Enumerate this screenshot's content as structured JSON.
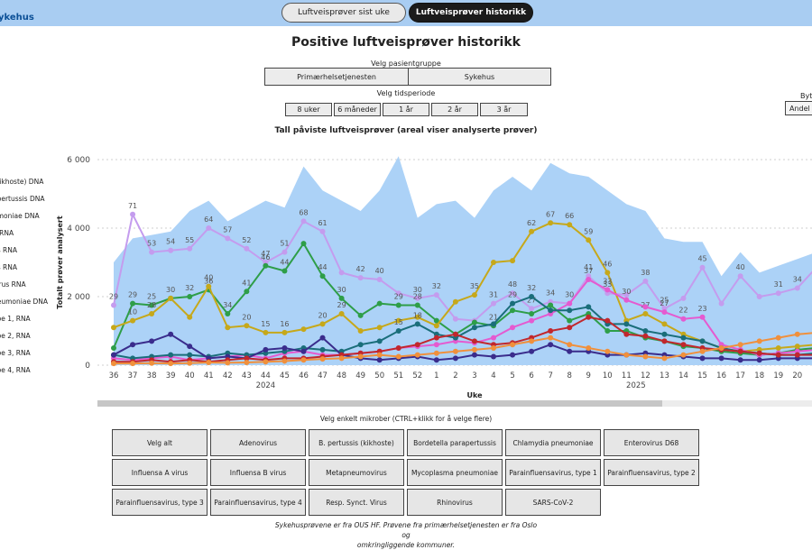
{
  "header": {
    "brand": "ykehus",
    "tabs": [
      {
        "label": "Luftveisprøver sist uke",
        "active": false
      },
      {
        "label": "Luftveisprøver historikk",
        "active": true
      }
    ]
  },
  "page_title": "Positive luftveisprøver historikk",
  "filters": {
    "patient_group_label": "Velg pasientgruppe",
    "patient_groups": [
      "Primærhelsetjenesten",
      "Sykehus"
    ],
    "period_label": "Velg tidsperiode",
    "periods": [
      "8 uker",
      "6 måneder",
      "1 år",
      "2 år",
      "3 år"
    ],
    "by_label": "Byt",
    "by_value": "Andel"
  },
  "chart_data": {
    "type": "line",
    "title": "Tall påviste luftveisprøver (areal viser analyserte prøver)",
    "ylabel": "Totalt prøver analysert",
    "xlabel": "Uke",
    "y_ticks": [
      "6 000",
      "4 000",
      "2 000",
      "0"
    ],
    "ylim": [
      0,
      6000
    ],
    "x": [
      "36",
      "37",
      "38",
      "39",
      "40",
      "41",
      "42",
      "43",
      "44",
      "45",
      "46",
      "47",
      "48",
      "49",
      "50",
      "51",
      "52",
      "1",
      "2",
      "3",
      "4",
      "5",
      "6",
      "7",
      "8",
      "9",
      "10",
      "11",
      "12",
      "13",
      "14",
      "15",
      "16",
      "17",
      "18",
      "19",
      "20",
      "21"
    ],
    "year_labels": [
      "2024",
      "2025"
    ],
    "area_analysed": [
      3000,
      3700,
      3800,
      3900,
      4500,
      4800,
      4200,
      4500,
      4800,
      4600,
      5800,
      5100,
      4800,
      4500,
      5100,
      6100,
      4300,
      4700,
      4800,
      4300,
      5100,
      5500,
      5100,
      5900,
      5600,
      5500,
      5100,
      4700,
      4500,
      3700,
      3600,
      3600,
      2600,
      3300,
      2700,
      2900,
      3100,
      3300
    ],
    "series": [
      {
        "color": "#c49cee",
        "labels": [
          29,
          71,
          53,
          54,
          55,
          64,
          57,
          52,
          47,
          51,
          68,
          61,
          null,
          42,
          40,
          null,
          30,
          32,
          null,
          null,
          31,
          48,
          27,
          34,
          30,
          41,
          33,
          null,
          38,
          25,
          null,
          45,
          null,
          40,
          null,
          31,
          34,
          null
        ],
        "values": [
          1750,
          4400,
          3300,
          3350,
          3400,
          4000,
          3700,
          3400,
          3000,
          3300,
          4200,
          3900,
          2700,
          2550,
          2500,
          2100,
          1950,
          2050,
          1350,
          1300,
          1800,
          2100,
          1650,
          1850,
          1800,
          2600,
          2100,
          2050,
          2450,
          1650,
          1950,
          2850,
          1800,
          2600,
          2000,
          2100,
          2250,
          2850
        ]
      },
      {
        "color": "#2e9e48",
        "labels": [
          null,
          29,
          25,
          null,
          32,
          36,
          34,
          41,
          46,
          44,
          null,
          44,
          30,
          null,
          null,
          29,
          28,
          null,
          null,
          null,
          21,
          null,
          null,
          null,
          null,
          null,
          null,
          null,
          null,
          null,
          null,
          null,
          null,
          null,
          null,
          null,
          null,
          null
        ],
        "values": [
          500,
          1800,
          1750,
          1950,
          2000,
          2200,
          1500,
          2150,
          2900,
          2750,
          3550,
          2600,
          1950,
          1450,
          1800,
          1750,
          1750,
          1300,
          900,
          1250,
          1150,
          1600,
          1500,
          1750,
          1300,
          1500,
          1000,
          1000,
          800,
          700,
          550,
          500,
          400,
          350,
          300,
          350,
          450,
          500
        ]
      },
      {
        "color": "#c6a81a",
        "labels": [
          null,
          10,
          28,
          30,
          null,
          40,
          null,
          20,
          15,
          16,
          null,
          20,
          29,
          null,
          null,
          null,
          null,
          null,
          null,
          35,
          null,
          null,
          62,
          67,
          66,
          59,
          46,
          null,
          27,
          null,
          null,
          null,
          null,
          null,
          null,
          null,
          null,
          null
        ],
        "values": [
          1100,
          1300,
          1500,
          1950,
          1400,
          2300,
          1100,
          1150,
          950,
          950,
          1050,
          1200,
          1500,
          1000,
          1100,
          1300,
          1400,
          1150,
          1850,
          2050,
          3000,
          3050,
          3900,
          4150,
          4100,
          3650,
          2700,
          1300,
          1500,
          1200,
          900,
          700,
          500,
          400,
          450,
          500,
          550,
          600
        ]
      },
      {
        "color": "#e55ad0",
        "labels": [
          null,
          null,
          null,
          null,
          null,
          null,
          null,
          null,
          null,
          null,
          null,
          null,
          null,
          null,
          null,
          null,
          null,
          null,
          null,
          null,
          null,
          null,
          null,
          null,
          null,
          37,
          33,
          30,
          null,
          27,
          22,
          23,
          null,
          null,
          null,
          null,
          null,
          null
        ],
        "values": [
          200,
          150,
          200,
          250,
          150,
          200,
          250,
          300,
          200,
          350,
          400,
          300,
          300,
          350,
          400,
          500,
          550,
          600,
          700,
          650,
          800,
          1100,
          1300,
          1500,
          1800,
          2500,
          2200,
          1900,
          1700,
          1550,
          1350,
          1400,
          600,
          450,
          300,
          350,
          400,
          450
        ]
      },
      {
        "color": "#1a6e7a",
        "labels": [
          null,
          null,
          null,
          null,
          null,
          null,
          null,
          null,
          null,
          null,
          null,
          null,
          null,
          null,
          null,
          15,
          18,
          null,
          null,
          null,
          null,
          29,
          32,
          null,
          null,
          null,
          null,
          null,
          null,
          null,
          null,
          null,
          null,
          null,
          null,
          null,
          null,
          null
        ],
        "values": [
          300,
          200,
          250,
          300,
          300,
          250,
          350,
          300,
          350,
          400,
          500,
          450,
          400,
          600,
          700,
          1000,
          1200,
          900,
          800,
          1100,
          1200,
          1800,
          2000,
          1600,
          1600,
          1700,
          1200,
          1200,
          1000,
          900,
          800,
          700,
          500,
          400,
          350,
          300,
          300,
          350
        ]
      },
      {
        "color": "#3a2c8c",
        "labels": [
          null,
          null,
          null,
          null,
          null,
          null,
          null,
          null,
          null,
          null,
          null,
          null,
          null,
          null,
          null,
          null,
          null,
          null,
          null,
          null,
          null,
          null,
          null,
          null,
          null,
          null,
          null,
          null,
          null,
          null,
          null,
          null,
          null,
          null,
          null,
          null,
          null,
          null
        ],
        "values": [
          300,
          600,
          700,
          900,
          550,
          200,
          250,
          200,
          450,
          500,
          400,
          800,
          300,
          200,
          150,
          200,
          250,
          150,
          200,
          300,
          250,
          300,
          400,
          600,
          400,
          400,
          300,
          300,
          350,
          300,
          250,
          200,
          200,
          150,
          150,
          200,
          200,
          200
        ]
      },
      {
        "color": "#c1272d",
        "labels": [
          null,
          null,
          null,
          null,
          null,
          null,
          null,
          null,
          null,
          null,
          null,
          null,
          null,
          null,
          null,
          null,
          null,
          null,
          null,
          null,
          null,
          null,
          null,
          null,
          null,
          null,
          null,
          null,
          null,
          null,
          null,
          null,
          null,
          null,
          null,
          null,
          null,
          null
        ],
        "values": [
          100,
          100,
          150,
          100,
          150,
          100,
          150,
          200,
          150,
          200,
          200,
          250,
          300,
          350,
          400,
          500,
          600,
          800,
          900,
          700,
          600,
          650,
          800,
          1000,
          1100,
          1400,
          1300,
          900,
          850,
          700,
          600,
          500,
          450,
          400,
          350,
          300,
          300,
          300
        ]
      },
      {
        "color": "#f0903c",
        "labels": [
          null,
          null,
          null,
          null,
          null,
          null,
          null,
          null,
          null,
          null,
          null,
          null,
          null,
          null,
          null,
          null,
          null,
          null,
          null,
          null,
          null,
          null,
          null,
          null,
          null,
          null,
          null,
          null,
          null,
          null,
          null,
          null,
          null,
          null,
          null,
          null,
          null,
          null
        ],
        "values": [
          50,
          50,
          60,
          50,
          60,
          80,
          70,
          80,
          100,
          120,
          150,
          180,
          200,
          250,
          300,
          250,
          300,
          350,
          400,
          450,
          500,
          600,
          700,
          800,
          600,
          500,
          400,
          300,
          250,
          200,
          300,
          400,
          500,
          600,
          700,
          800,
          900,
          950
        ]
      }
    ],
    "grid": true
  },
  "legend_items": [
    "A",
    "(kikhoste) DNA",
    "apertussis DNA",
    "umoniae DNA",
    "8 RNA",
    "us RNA",
    "us RNA",
    "virus RNA",
    "neumoniae DNA",
    "ype 1, RNA",
    "ype 2, RNA",
    "ype 3, RNA",
    "ype 4, RNA"
  ],
  "microbe_selector": {
    "label": "Velg enkelt mikrober (CTRL+klikk for å velge flere)",
    "buttons": [
      "Velg alt",
      "Adenovirus",
      "B. pertussis (kikhoste)",
      "Bordetella parapertussis",
      "Chlamydia pneumoniae",
      "Enterovirus D68",
      "Influensa A virus",
      "Influensa B virus",
      "Metapneumovirus",
      "Mycoplasma pneumoniae",
      "Parainfluensavirus, type 1",
      "Parainfluensavirus, type 2",
      "Parainfluensavirus, type 3",
      "Parainfluensavirus, type 4",
      "Resp. Synct. Virus",
      "Rhinovirus",
      "SARS-CoV-2"
    ]
  },
  "footer": {
    "line1": "Sykehusprøvene er fra OUS HF. Prøvene fra primærhelsetjenesten er fra Oslo og",
    "line2": "omkringliggende kommuner."
  }
}
